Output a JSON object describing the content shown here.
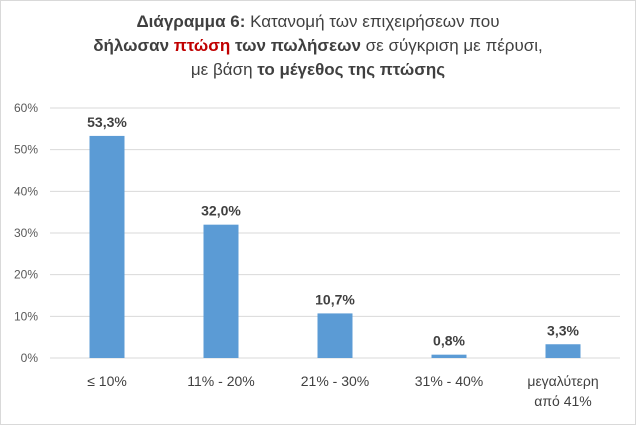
{
  "title": {
    "line1_bold": "Διάγραμμα 6:",
    "line1_rest": " Κατανομή των επιχειρήσεων που",
    "line2_bold_a": "δήλωσαν",
    "line2_red": " πτώση",
    "line2_bold_b": " των πωλήσεων",
    "line2_rest": " σε σύγκριση με πέρυσι,",
    "line3_rest": "με βάση ",
    "line3_bold": "το μέγεθος της πτώσης"
  },
  "chart_data": {
    "type": "bar",
    "categories": [
      [
        "≤ 10%"
      ],
      [
        "11% - 20%"
      ],
      [
        "21% - 30%"
      ],
      [
        "31% - 40%"
      ],
      [
        "μεγαλύτερη",
        "από 41%"
      ]
    ],
    "values": [
      53.3,
      32.0,
      10.7,
      0.8,
      3.3
    ],
    "data_labels": [
      "53,3%",
      "32,0%",
      "10,7%",
      "0,8%",
      "3,3%"
    ],
    "yticks": [
      "0%",
      "10%",
      "20%",
      "30%",
      "40%",
      "50%",
      "60%"
    ],
    "ylim": [
      0,
      60
    ],
    "grid": true,
    "bar_color": "#5b9bd5",
    "grid_color": "#d9d9d9"
  }
}
